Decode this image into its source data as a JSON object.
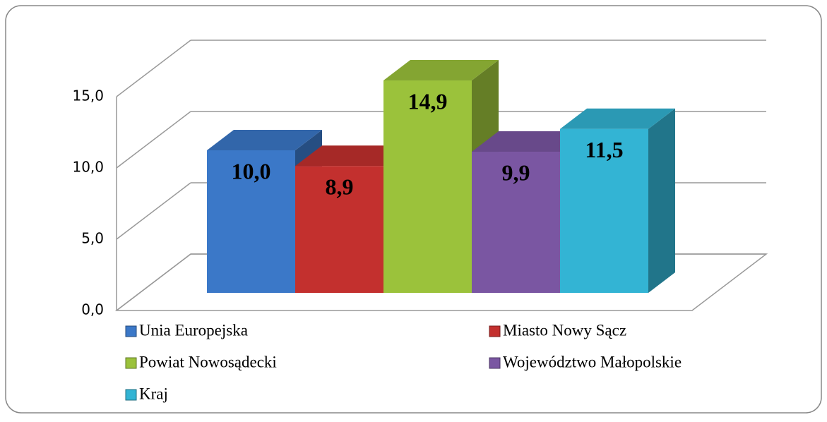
{
  "chart_data": {
    "type": "bar3d",
    "categories": [
      null
    ],
    "series": [
      {
        "name": "Unia Europejska",
        "color": "#3b78c8",
        "values": [
          10.0
        ],
        "value_labels": [
          "10,0"
        ]
      },
      {
        "name": "Miasto Nowy Sącz",
        "color": "#c3302e",
        "values": [
          8.9
        ],
        "value_labels": [
          "8,9"
        ]
      },
      {
        "name": "Powiat Nowosądecki",
        "color": "#9bc23b",
        "values": [
          14.9
        ],
        "value_labels": [
          "14,9"
        ]
      },
      {
        "name": "Województwo Małopolskie",
        "color": "#7a56a2",
        "values": [
          9.9
        ],
        "value_labels": [
          "9,9"
        ]
      },
      {
        "name": "Kraj",
        "color": "#33b4d4",
        "values": [
          11.5
        ],
        "value_labels": [
          "11,5"
        ]
      }
    ],
    "ylim": [
      0,
      15
    ],
    "yticks": [
      {
        "value": 0,
        "label": "0,0"
      },
      {
        "value": 5,
        "label": "5,0"
      },
      {
        "value": 10,
        "label": "10,0"
      },
      {
        "value": 15,
        "label": "15,0"
      }
    ],
    "grid": true,
    "legend": "bottom"
  }
}
